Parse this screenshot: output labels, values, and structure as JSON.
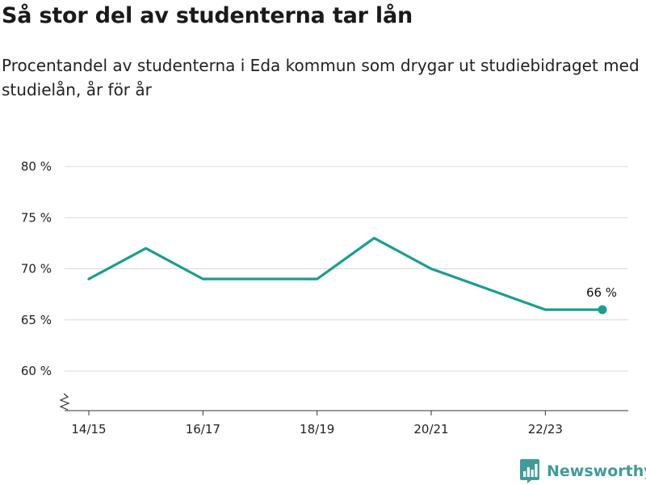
{
  "header": {
    "title": "Så stor del av studenterna tar lån",
    "subtitle": "Procentandel av studenterna i Eda kommun som drygar ut studiebidraget med studielån, år för år"
  },
  "brand": {
    "name": "Newsworthy",
    "icon": "bar-chart-logo-icon",
    "color": "#3f9c9a"
  },
  "chart_data": {
    "type": "line",
    "categories": [
      "14/15",
      "15/16",
      "16/17",
      "17/18",
      "18/19",
      "19/20",
      "20/21",
      "21/22",
      "22/23",
      "23/24"
    ],
    "x_tick_labels": [
      "14/15",
      "16/17",
      "18/19",
      "20/21",
      "22/23"
    ],
    "series": [
      {
        "values": [
          69,
          72,
          69,
          69,
          69,
          73,
          70,
          68,
          66,
          66
        ],
        "color": "#1a9e91"
      }
    ],
    "y_ticks": [
      60,
      65,
      70,
      75,
      80
    ],
    "y_tick_labels": [
      "60 %",
      "65 %",
      "70 %",
      "75 %",
      "80 %"
    ],
    "ylim": [
      56,
      80
    ],
    "y_axis_break": true,
    "grid": true,
    "legend": "none",
    "end_label": "66 %"
  }
}
